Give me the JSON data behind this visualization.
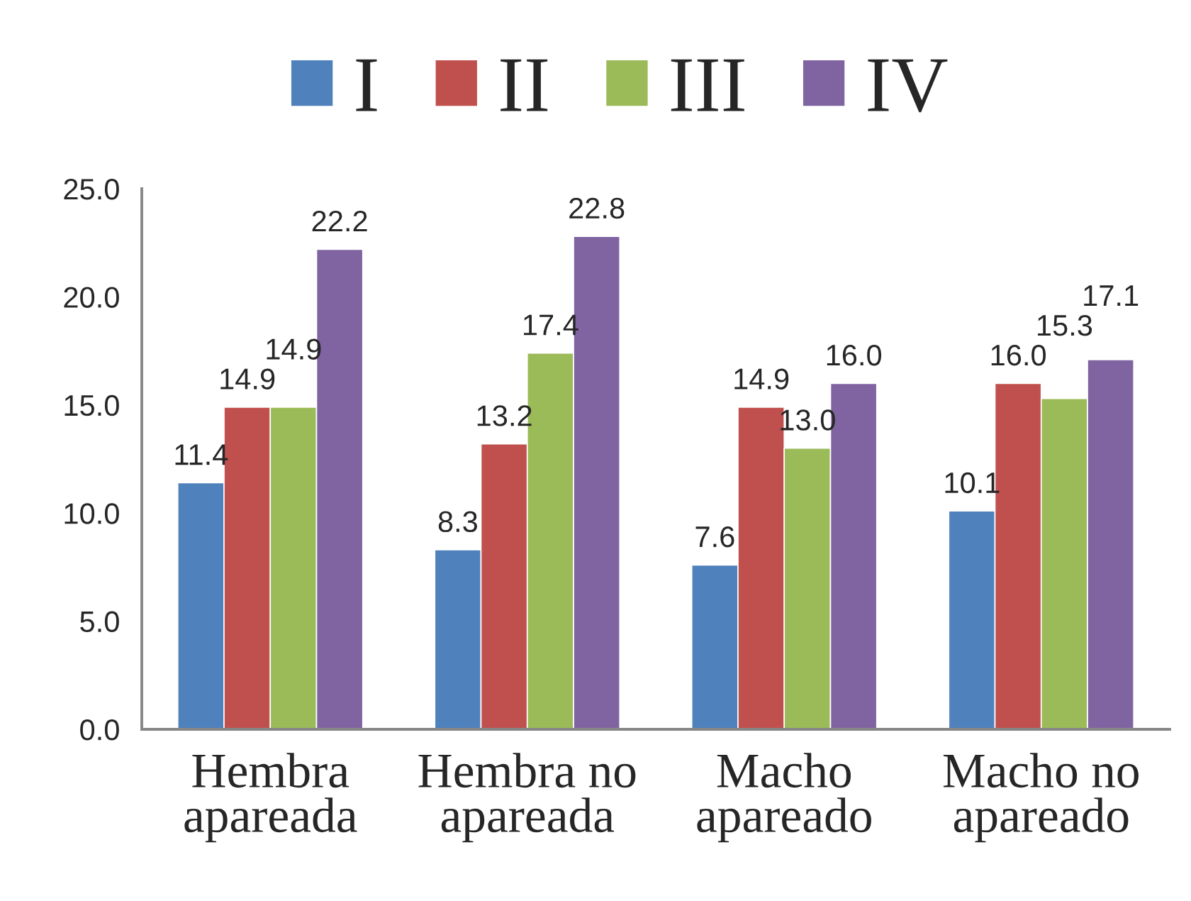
{
  "chart_data": {
    "type": "bar",
    "categories": [
      "Hembra apareada",
      "Hembra no apareada",
      "Macho apareado",
      "Macho no apareado"
    ],
    "series": [
      {
        "name": "I",
        "color": "#4f81bd",
        "values": [
          11.4,
          8.3,
          7.6,
          10.1
        ],
        "value_labels": [
          "11.4",
          "8.3",
          "7.6",
          "10.1"
        ]
      },
      {
        "name": "II",
        "color": "#c0504d",
        "values": [
          14.9,
          13.2,
          14.9,
          16.0
        ],
        "value_labels": [
          "14.9",
          "13.2",
          "14.9",
          "16.0"
        ]
      },
      {
        "name": "III",
        "color": "#9bbb59",
        "values": [
          14.9,
          17.4,
          13.0,
          15.3
        ],
        "value_labels": [
          "14.9",
          "17.4",
          "13.0",
          "15.3"
        ]
      },
      {
        "name": "IV",
        "color": "#8064a2",
        "values": [
          22.2,
          22.8,
          16.0,
          17.1
        ],
        "value_labels": [
          "22.2",
          "22.8",
          "16.0",
          "17.1"
        ]
      }
    ],
    "ylim": [
      0,
      25
    ],
    "yticks": [
      {
        "value": 0,
        "label": "0.0"
      },
      {
        "value": 5,
        "label": "5.0"
      },
      {
        "value": 10,
        "label": "10.0"
      },
      {
        "value": 15,
        "label": "15.0"
      },
      {
        "value": 20,
        "label": "20.0"
      },
      {
        "value": 25,
        "label": "25.0"
      }
    ],
    "legend": "top"
  }
}
